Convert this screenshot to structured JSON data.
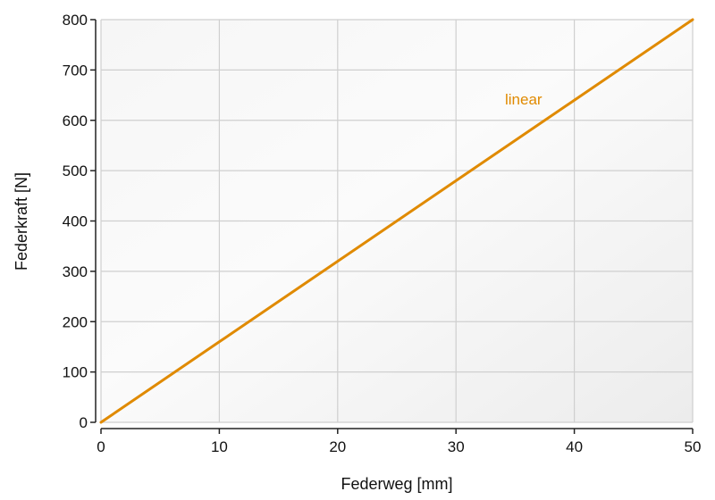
{
  "chart_data": {
    "type": "line",
    "title": "",
    "xlabel": "Federweg [mm]",
    "ylabel": "Federkraft [N]",
    "xlim": [
      0,
      50
    ],
    "ylim": [
      0,
      800
    ],
    "x_ticks": [
      0,
      10,
      20,
      30,
      40,
      50
    ],
    "y_ticks": [
      0,
      100,
      200,
      300,
      400,
      500,
      600,
      700,
      800
    ],
    "grid": true,
    "legend": "none",
    "series": [
      {
        "name": "linear",
        "color": "#e08a00",
        "x": [
          0,
          10,
          20,
          30,
          40,
          50
        ],
        "y": [
          0,
          160,
          320,
          480,
          640,
          800
        ]
      }
    ],
    "annotations": [
      {
        "text": "linear",
        "x": 36,
        "y": 640,
        "color": "#e08a00"
      }
    ]
  },
  "colors": {
    "plot_background": "#f0f0f0",
    "grid": "#cfcfcf",
    "axis": "#222222",
    "series": "#e08a00"
  }
}
